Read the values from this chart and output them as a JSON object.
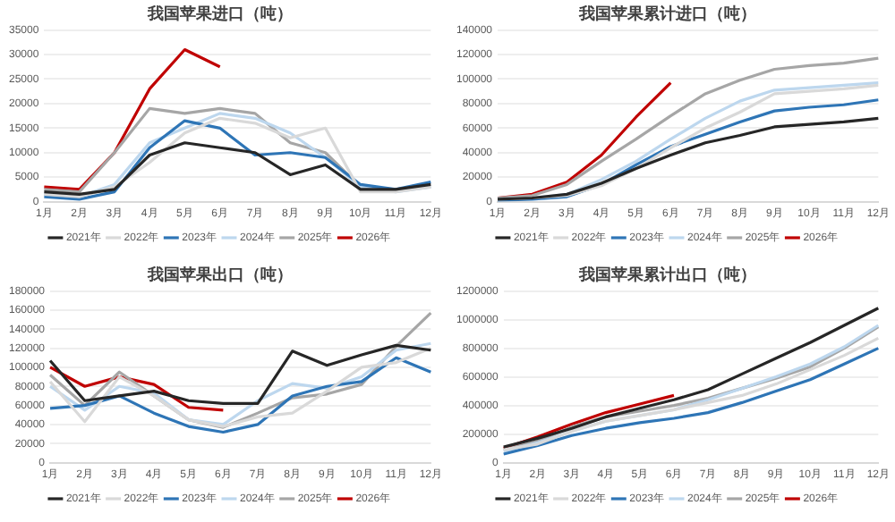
{
  "chart_data": [
    {
      "type": "line",
      "title": "我国苹果进口（吨）",
      "categories": [
        "1月",
        "2月",
        "3月",
        "4月",
        "5月",
        "6月",
        "7月",
        "8月",
        "9月",
        "10月",
        "11月",
        "12月"
      ],
      "ylim": [
        0,
        35000
      ],
      "yticks": [
        0,
        5000,
        10000,
        15000,
        20000,
        25000,
        30000,
        35000
      ],
      "grid": "y",
      "legend": "bottom",
      "marker": "none",
      "line_style": "solid",
      "series": [
        {
          "name": "2021年",
          "color": "#262626",
          "values": [
            2000,
            1500,
            2500,
            9500,
            12000,
            11000,
            10000,
            5500,
            7500,
            2500,
            2500,
            3500
          ]
        },
        {
          "name": "2022年",
          "color": "#d9d9d9",
          "values": [
            1500,
            1000,
            3000,
            8000,
            14000,
            17000,
            16000,
            13000,
            15000,
            2000,
            2000,
            3000
          ]
        },
        {
          "name": "2023年",
          "color": "#2e75b6",
          "values": [
            1000,
            500,
            2000,
            11000,
            16500,
            15000,
            9500,
            10000,
            9000,
            3500,
            2500,
            4000
          ]
        },
        {
          "name": "2024年",
          "color": "#bdd7ee",
          "values": [
            1500,
            1000,
            3500,
            12000,
            15000,
            18000,
            17000,
            14000,
            9000,
            3000,
            2000,
            3000
          ]
        },
        {
          "name": "2025年",
          "color": "#a6a6a6",
          "values": [
            2500,
            2000,
            10000,
            19000,
            18000,
            19000,
            18000,
            12000,
            10000,
            3000,
            2500,
            3000
          ]
        },
        {
          "name": "2026年",
          "color": "#c00000",
          "values": [
            3000,
            2500,
            10000,
            23000,
            31000,
            27500,
            null,
            null,
            null,
            null,
            null,
            null
          ]
        }
      ]
    },
    {
      "type": "line",
      "title": "我国苹果累计进口（吨）",
      "categories": [
        "1月",
        "2月",
        "3月",
        "4月",
        "5月",
        "6月",
        "7月",
        "8月",
        "9月",
        "10月",
        "11月",
        "12月"
      ],
      "ylim": [
        0,
        140000
      ],
      "yticks": [
        0,
        20000,
        40000,
        60000,
        80000,
        100000,
        120000,
        140000
      ],
      "grid": "y",
      "legend": "bottom",
      "marker": "none",
      "line_style": "solid",
      "series": [
        {
          "name": "2021年",
          "color": "#262626",
          "values": [
            2000,
            3000,
            6000,
            15000,
            27000,
            38000,
            48000,
            54000,
            61000,
            63000,
            65000,
            68000
          ]
        },
        {
          "name": "2022年",
          "color": "#d9d9d9",
          "values": [
            2000,
            3000,
            5000,
            13000,
            27000,
            44000,
            60000,
            73000,
            88000,
            90000,
            92000,
            95000
          ]
        },
        {
          "name": "2023年",
          "color": "#2e75b6",
          "values": [
            1000,
            2000,
            4000,
            14000,
            30000,
            45000,
            55000,
            65000,
            74000,
            77000,
            79000,
            83000
          ]
        },
        {
          "name": "2024年",
          "color": "#bdd7ee",
          "values": [
            2000,
            3000,
            6000,
            18000,
            33000,
            51000,
            68000,
            82000,
            91000,
            93000,
            95000,
            97000
          ]
        },
        {
          "name": "2025年",
          "color": "#a6a6a6",
          "values": [
            3000,
            5000,
            14000,
            33000,
            51000,
            70000,
            88000,
            99000,
            108000,
            111000,
            113000,
            117000
          ]
        },
        {
          "name": "2026年",
          "color": "#c00000",
          "values": [
            3000,
            6000,
            16000,
            38000,
            69000,
            97000,
            null,
            null,
            null,
            null,
            null,
            null
          ]
        }
      ]
    },
    {
      "type": "line",
      "title": "我国苹果出口（吨）",
      "categories": [
        "1月",
        "2月",
        "3月",
        "4月",
        "5月",
        "6月",
        "7月",
        "8月",
        "9月",
        "10月",
        "11月",
        "12月"
      ],
      "ylim": [
        0,
        180000
      ],
      "yticks": [
        0,
        20000,
        40000,
        60000,
        80000,
        100000,
        120000,
        140000,
        160000,
        180000
      ],
      "grid": "y",
      "legend": "bottom",
      "marker": "none",
      "line_style": "solid",
      "series": [
        {
          "name": "2021年",
          "color": "#262626",
          "values": [
            107000,
            65000,
            70000,
            75000,
            65000,
            62000,
            62000,
            117000,
            102000,
            113000,
            123000,
            118000
          ]
        },
        {
          "name": "2022年",
          "color": "#d9d9d9",
          "values": [
            85000,
            43000,
            90000,
            70000,
            45000,
            38000,
            48000,
            52000,
            75000,
            100000,
            105000,
            120000
          ]
        },
        {
          "name": "2023年",
          "color": "#2e75b6",
          "values": [
            57000,
            60000,
            70000,
            52000,
            38000,
            32000,
            40000,
            70000,
            80000,
            85000,
            110000,
            95000
          ]
        },
        {
          "name": "2024年",
          "color": "#bdd7ee",
          "values": [
            80000,
            55000,
            80000,
            73000,
            45000,
            40000,
            65000,
            83000,
            78000,
            90000,
            118000,
            125000
          ]
        },
        {
          "name": "2025年",
          "color": "#a6a6a6",
          "values": [
            92000,
            60000,
            95000,
            70000,
            45000,
            37000,
            52000,
            68000,
            72000,
            82000,
            122000,
            157000
          ]
        },
        {
          "name": "2026年",
          "color": "#c00000",
          "values": [
            100000,
            80000,
            90000,
            82000,
            58000,
            55000,
            null,
            null,
            null,
            null,
            null,
            null
          ]
        }
      ]
    },
    {
      "type": "line",
      "title": "我国苹果累计出口（吨）",
      "categories": [
        "1月",
        "2月",
        "3月",
        "4月",
        "5月",
        "6月",
        "7月",
        "8月",
        "9月",
        "10月",
        "11月",
        "12月"
      ],
      "ylim": [
        0,
        1200000
      ],
      "yticks": [
        0,
        200000,
        400000,
        600000,
        800000,
        1000000,
        1200000
      ],
      "grid": "y",
      "legend": "bottom",
      "marker": "none",
      "line_style": "solid",
      "series": [
        {
          "name": "2021年",
          "color": "#262626",
          "values": [
            110000,
            170000,
            240000,
            320000,
            380000,
            440000,
            510000,
            620000,
            730000,
            840000,
            960000,
            1080000
          ]
        },
        {
          "name": "2022年",
          "color": "#d9d9d9",
          "values": [
            90000,
            130000,
            220000,
            290000,
            330000,
            370000,
            420000,
            470000,
            550000,
            650000,
            750000,
            870000
          ]
        },
        {
          "name": "2023年",
          "color": "#2e75b6",
          "values": [
            60000,
            120000,
            190000,
            240000,
            280000,
            310000,
            350000,
            420000,
            500000,
            580000,
            690000,
            800000
          ]
        },
        {
          "name": "2024年",
          "color": "#bdd7ee",
          "values": [
            80000,
            140000,
            220000,
            290000,
            330000,
            370000,
            440000,
            520000,
            600000,
            690000,
            810000,
            960000
          ]
        },
        {
          "name": "2025年",
          "color": "#a6a6a6",
          "values": [
            90000,
            150000,
            250000,
            320000,
            360000,
            400000,
            450000,
            520000,
            590000,
            670000,
            800000,
            950000
          ]
        },
        {
          "name": "2026年",
          "color": "#c00000",
          "values": [
            100000,
            180000,
            270000,
            350000,
            410000,
            470000,
            null,
            null,
            null,
            null,
            null,
            null
          ]
        }
      ]
    }
  ]
}
